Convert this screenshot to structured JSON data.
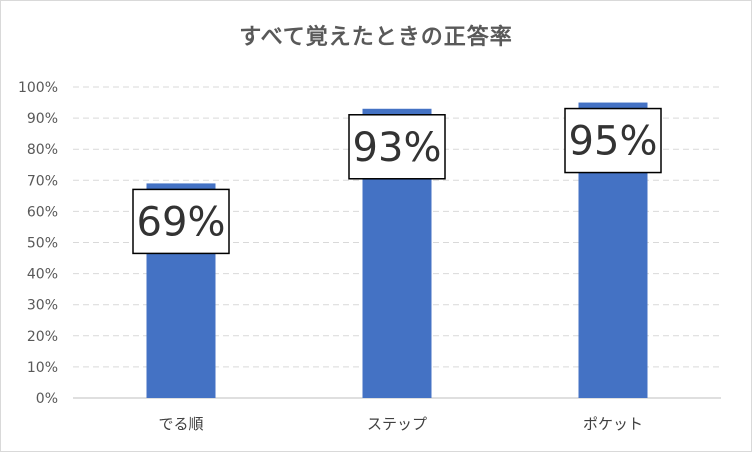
{
  "chart_data": {
    "type": "bar",
    "title": "すべて覚えたときの正答率",
    "categories": [
      "でる順",
      "ステップ",
      "ポケット"
    ],
    "values": [
      69,
      93,
      95
    ],
    "data_labels": [
      "69%",
      "93%",
      "95%"
    ],
    "ylim": [
      0,
      100
    ],
    "y_ticks": [
      0,
      10,
      20,
      30,
      40,
      50,
      60,
      70,
      80,
      90,
      100
    ],
    "y_tick_labels": [
      "0%",
      "10%",
      "20%",
      "30%",
      "40%",
      "50%",
      "60%",
      "70%",
      "80%",
      "90%",
      "100%"
    ],
    "bar_color": "#4472c4",
    "grid": "dashed horizontal",
    "legend": "none"
  }
}
